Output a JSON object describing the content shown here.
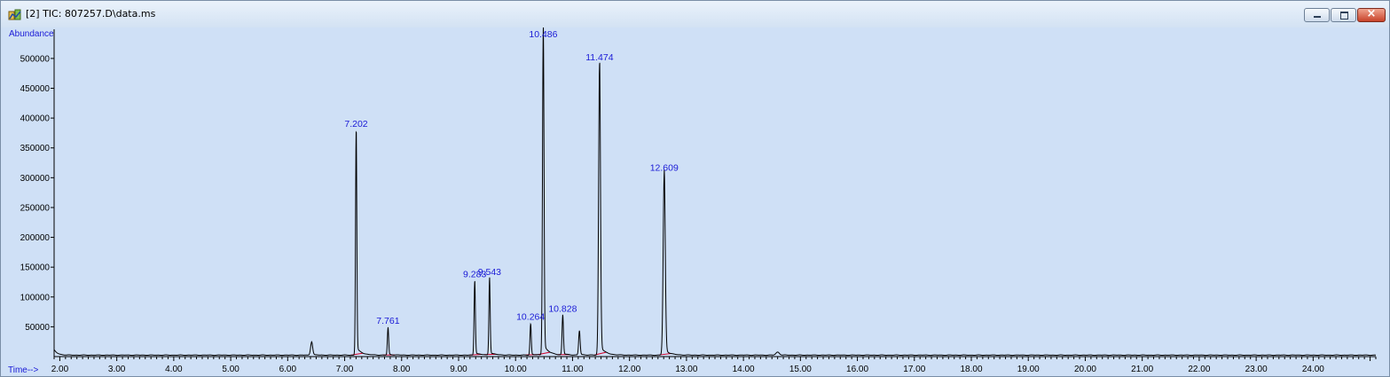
{
  "window": {
    "title": "[2] TIC: 807257.D\\data.ms",
    "icon": "chemstation-icon",
    "controls": {
      "close_glyph": "×"
    }
  },
  "colors": {
    "plot_background": "#cfe0f6",
    "trace": "#000000",
    "peak_label": "#1a1ad6",
    "axis_label": "#1a1ad6",
    "baseline": "#d4002a"
  },
  "chart_data": {
    "type": "line",
    "ylabel": "Abundance",
    "xlabel": "Time-->",
    "xlim": [
      1.9,
      25.1
    ],
    "ylim": [
      0,
      540000
    ],
    "x_ticks": [
      "2.00",
      "3.00",
      "4.00",
      "5.00",
      "6.00",
      "7.00",
      "8.00",
      "9.00",
      "10.00",
      "11.00",
      "12.00",
      "13.00",
      "14.00",
      "15.00",
      "16.00",
      "17.00",
      "18.00",
      "19.00",
      "20.00",
      "21.00",
      "22.00",
      "23.00",
      "24.00"
    ],
    "y_ticks": [
      "50000",
      "100000",
      "150000",
      "200000",
      "250000",
      "300000",
      "350000",
      "400000",
      "450000",
      "500000"
    ],
    "baseline_level": 2500,
    "peaks": [
      {
        "rt": 6.42,
        "height": 22000,
        "width": 0.018,
        "label": ""
      },
      {
        "rt": 7.202,
        "height": 375000,
        "width": 0.011,
        "label": "7.202"
      },
      {
        "rt": 7.761,
        "height": 45000,
        "width": 0.011,
        "label": "7.761"
      },
      {
        "rt": 9.283,
        "height": 123000,
        "width": 0.011,
        "label": "9.283"
      },
      {
        "rt": 9.543,
        "height": 127000,
        "width": 0.011,
        "label": "9.543"
      },
      {
        "rt": 10.264,
        "height": 52000,
        "width": 0.011,
        "label": "10.264"
      },
      {
        "rt": 10.486,
        "height": 540000,
        "width": 0.013,
        "label": "10.486"
      },
      {
        "rt": 10.828,
        "height": 65000,
        "width": 0.012,
        "label": "10.828"
      },
      {
        "rt": 11.12,
        "height": 40000,
        "width": 0.013,
        "label": ""
      },
      {
        "rt": 11.474,
        "height": 487000,
        "width": 0.016,
        "label": "11.474"
      },
      {
        "rt": 12.609,
        "height": 302000,
        "width": 0.018,
        "label": "12.609"
      },
      {
        "rt": 14.6,
        "height": 5000,
        "width": 0.03,
        "label": ""
      }
    ]
  }
}
